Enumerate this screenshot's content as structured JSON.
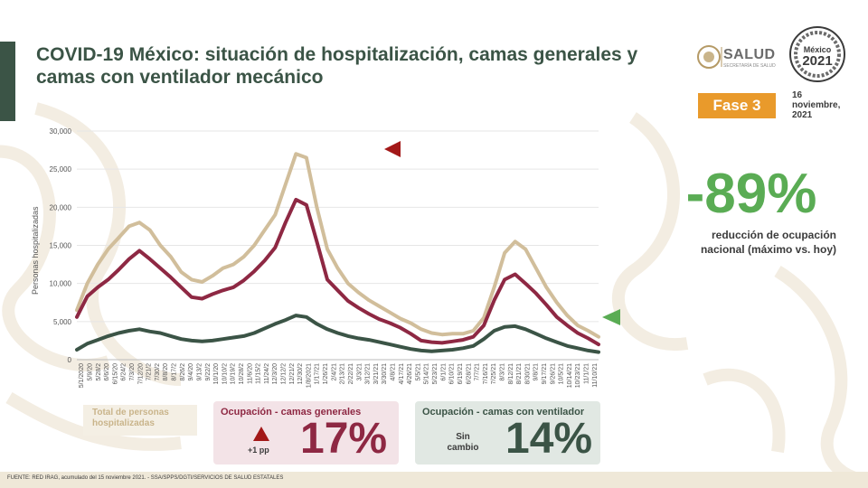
{
  "title": "COVID-19 México: situación de hospitalización, camas generales y camas con ventilador mecánico",
  "header": {
    "salud_label": "SALUD",
    "salud_sub": "SECRETARÍA DE SALUD",
    "seal_year": "2021",
    "seal_top": "México",
    "fase": "Fase 3",
    "date_line1": "16",
    "date_line2": "noviembre,",
    "date_line3": "2021"
  },
  "summary": {
    "big_value": "-89%",
    "big_caption": "reducción de ocupación nacional (máximo vs. hoy)"
  },
  "legend_boxes": {
    "total": "Total de personas hospitalizadas",
    "general_label": "Ocupación - camas generales",
    "general_change": "+1 pp",
    "general_value": "17%",
    "vent_label": "Ocupación - camas con ventilador",
    "vent_change": "Sin cambio",
    "vent_value": "14%"
  },
  "footer": "FUENTE: RED IRAG, acumulado del 15 noviembre 2021. - SSA/SPPS/DGTI/SERVICIOS DE SALUD ESTATALES",
  "colors": {
    "total": "#d1be9b",
    "general": "#8e2843",
    "vent": "#3b5446",
    "accent_green": "#5aac54",
    "marker_red": "#a31818"
  },
  "chart_data": {
    "type": "line",
    "ylabel": "Personas hospitalizadas",
    "ylim": [
      0,
      30000
    ],
    "yticks": [
      "0",
      "5,000",
      "10,000",
      "15,000",
      "20,000",
      "25,000",
      "30,000"
    ],
    "xticks": [
      "5/1/2020",
      "5/9/20",
      "5/28/2",
      "6/6/20",
      "6/15/20",
      "6/24/2",
      "7/3/20",
      "7/12/20",
      "7/21/2",
      "7/30/2",
      "8/8/20",
      "8/17/2",
      "8/26/2",
      "9/4/20",
      "9/13/2",
      "9/22/2",
      "10/1/20",
      "10/10/2",
      "10/19/2",
      "10/28/2",
      "11/6/20",
      "11/15/2",
      "11/24/2",
      "12/3/20",
      "12/12/2",
      "12/21/2",
      "12/30/2",
      "1/8/2021",
      "1/17/21",
      "1/26/21",
      "2/4/21",
      "2/13/21",
      "2/22/21",
      "3/3/21",
      "3/12/21",
      "3/21/21",
      "3/30/21",
      "4/8/21",
      "4/17/21",
      "4/26/21",
      "5/5/21",
      "5/14/21",
      "5/23/21",
      "6/1/21",
      "6/10/21",
      "6/19/21",
      "6/28/21",
      "7/7/21",
      "7/16/21",
      "7/25/21",
      "8/3/21",
      "8/12/21",
      "8/21/21",
      "8/30/21",
      "9/8/21",
      "9/17/21",
      "9/26/21",
      "10/5/21",
      "10/14/21",
      "10/23/21",
      "11/1/21",
      "11/10/21"
    ],
    "series": [
      {
        "name": "Total de personas hospitalizadas",
        "values": [
          6500,
          10000,
          12500,
          14500,
          16000,
          17500,
          18000,
          17000,
          15000,
          13500,
          11500,
          10500,
          10200,
          11000,
          12000,
          12500,
          13500,
          15000,
          17000,
          19000,
          23000,
          27000,
          26500,
          20000,
          14500,
          12000,
          10000,
          8800,
          7800,
          7000,
          6200,
          5400,
          4800,
          4000,
          3500,
          3300,
          3400,
          3400,
          3800,
          5500,
          9500,
          14000,
          15500,
          14500,
          12000,
          9500,
          7500,
          5800,
          4500,
          3800,
          3000
        ]
      },
      {
        "name": "Ocupación - camas generales",
        "values": [
          5600,
          8300,
          9500,
          10500,
          11800,
          13200,
          14300,
          13200,
          12000,
          10800,
          9500,
          8200,
          8000,
          8600,
          9100,
          9500,
          10400,
          11600,
          13000,
          14700,
          18000,
          21000,
          20300,
          15500,
          10500,
          9100,
          7700,
          6800,
          6000,
          5300,
          4800,
          4200,
          3400,
          2500,
          2300,
          2200,
          2400,
          2600,
          3000,
          4500,
          7800,
          10500,
          11200,
          10000,
          8700,
          7200,
          5600,
          4500,
          3500,
          2800,
          2000
        ]
      },
      {
        "name": "Ocupación - camas con ventilador",
        "values": [
          1300,
          2100,
          2600,
          3100,
          3500,
          3800,
          4000,
          3700,
          3500,
          3100,
          2700,
          2500,
          2400,
          2500,
          2700,
          2900,
          3100,
          3500,
          4100,
          4700,
          5200,
          5800,
          5600,
          4700,
          4000,
          3500,
          3100,
          2800,
          2600,
          2300,
          2000,
          1700,
          1400,
          1200,
          1100,
          1200,
          1300,
          1500,
          1800,
          2700,
          3800,
          4300,
          4400,
          4000,
          3400,
          2800,
          2300,
          1800,
          1500,
          1200,
          1000
        ]
      }
    ],
    "legend": "bottom",
    "grid": true
  }
}
